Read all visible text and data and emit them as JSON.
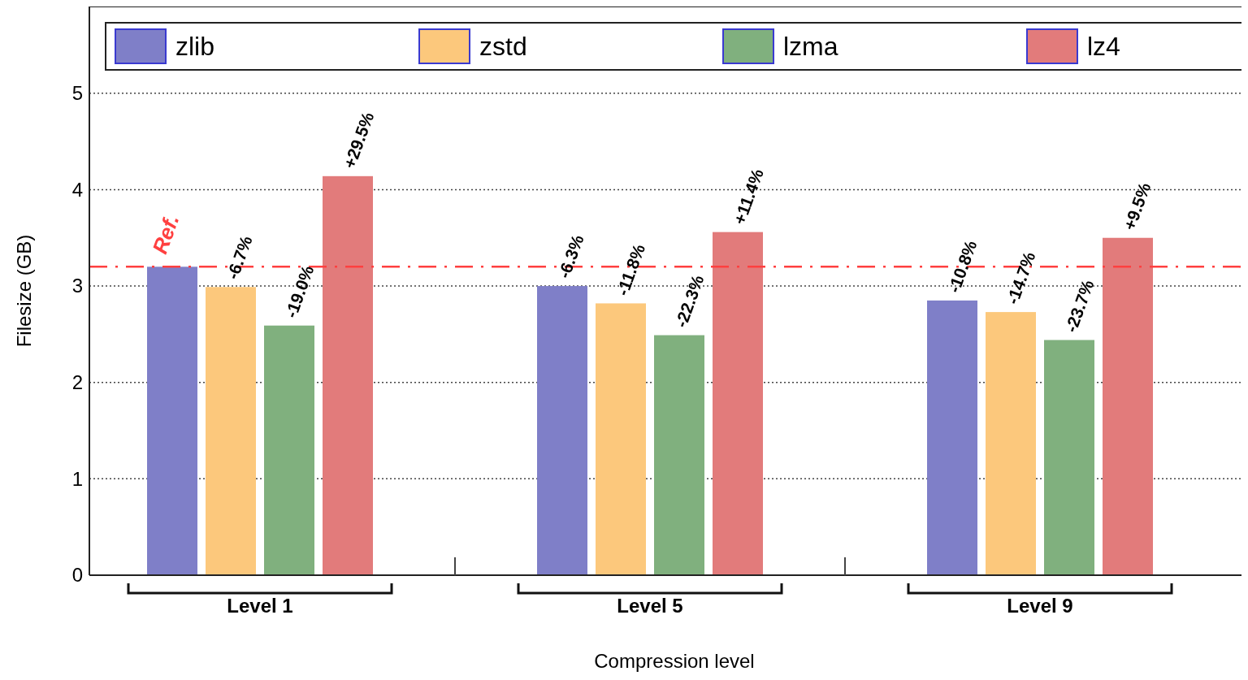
{
  "chart_data": {
    "type": "bar",
    "xlabel": "Compression level",
    "ylabel": "Filesize (GB)",
    "categories": [
      "Level 1",
      "Level 5",
      "Level 9"
    ],
    "series": [
      {
        "name": "zlib",
        "color": "#7f7fc8",
        "values": [
          3.2,
          3.0,
          2.85
        ]
      },
      {
        "name": "zstd",
        "color": "#fcc87c",
        "values": [
          2.99,
          2.82,
          2.73
        ]
      },
      {
        "name": "lzma",
        "color": "#80b07e",
        "values": [
          2.59,
          2.49,
          2.44
        ]
      },
      {
        "name": "lz4",
        "color": "#e27b7b",
        "values": [
          4.14,
          3.56,
          3.5
        ]
      }
    ],
    "annotations": [
      "-6.3%",
      "-10.8%",
      "-6.7%",
      "-11.8%",
      "-14.7%",
      "-19.0%",
      "-22.3%",
      "-23.7%",
      "+29.5%",
      "+11.4%",
      "+9.5%"
    ],
    "ylim": [
      0,
      5.9
    ],
    "yticks": [
      0,
      1,
      2,
      3,
      4,
      5
    ],
    "grid": "y",
    "legend": "top",
    "ref_lines": [
      {
        "axis": "y",
        "value": 3.2,
        "label": "Ref.",
        "color": "#ff4040",
        "line_style": "dashdot"
      }
    ]
  }
}
